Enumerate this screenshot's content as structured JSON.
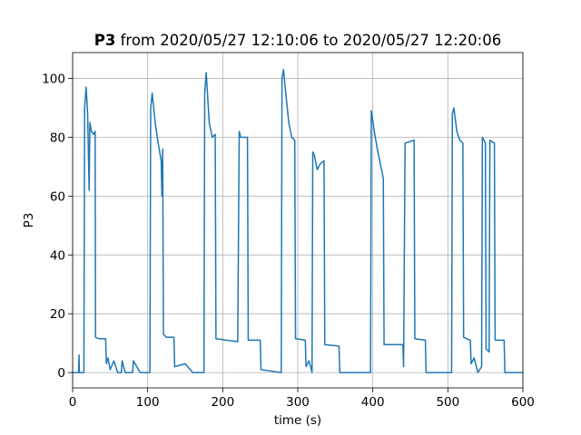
{
  "chart_data": {
    "type": "line",
    "title": {
      "bold": "P3",
      "text": "from 2020/05/27 12:10:06 to 2020/05/27 12:20:06"
    },
    "x_label": "time (s)",
    "y_label": "P3",
    "xlim": [
      0,
      600
    ],
    "xticks": [
      0,
      100,
      200,
      300,
      400,
      500,
      600
    ],
    "ylim": [
      -5.2,
      108.8
    ],
    "yticks": [
      0,
      20,
      40,
      60,
      80,
      100
    ],
    "grid": true,
    "series": [
      {
        "color": "#1f77b4",
        "x": [
          0,
          8,
          8.5,
          9,
          15,
          16,
          18,
          20,
          22,
          23,
          25,
          28,
          30,
          30.5,
          35,
          44,
          45,
          47,
          50,
          55,
          60,
          65,
          66,
          70,
          80,
          81,
          90,
          103,
          104,
          106,
          110,
          114,
          118,
          119,
          120,
          121,
          125,
          135,
          136,
          150,
          160,
          175,
          176,
          178,
          182,
          186,
          190,
          191,
          205,
          220,
          222,
          224,
          233,
          234,
          250,
          251,
          278,
          279,
          281,
          284,
          288,
          292,
          296,
          297,
          310,
          311,
          315,
          319,
          320,
          322,
          326,
          330,
          335,
          336,
          355,
          356,
          397,
          398,
          402,
          406,
          410,
          414,
          415,
          440,
          441,
          443,
          455,
          456,
          470,
          471,
          505,
          506,
          508,
          512,
          516,
          520,
          521,
          530,
          531,
          535,
          540,
          545,
          546,
          550,
          551,
          555,
          556,
          562,
          563,
          575,
          576,
          600
        ],
        "values": [
          0,
          0,
          6,
          0,
          0,
          90,
          97,
          88,
          62,
          85,
          82,
          81,
          82,
          12,
          11.5,
          11.5,
          3,
          5,
          1,
          4,
          0,
          0,
          4,
          0,
          0,
          4,
          0,
          0,
          90,
          95,
          85,
          78,
          72,
          60,
          76,
          13,
          12,
          12,
          2,
          3,
          0,
          0,
          95,
          102,
          85,
          80,
          81,
          11.5,
          11,
          10.5,
          82,
          80,
          80,
          11,
          11,
          1,
          0,
          100,
          103,
          95,
          85,
          80,
          79,
          11.5,
          11,
          2,
          4,
          0,
          75,
          74,
          69,
          71,
          72,
          9.5,
          9,
          0,
          0,
          89,
          82,
          76,
          71,
          66,
          9.5,
          9.5,
          2,
          78,
          79,
          11.5,
          11,
          0,
          0,
          88,
          90,
          82,
          79,
          78,
          12,
          11,
          3,
          5,
          0,
          2,
          80,
          78,
          8,
          7,
          79,
          78,
          11,
          11,
          0,
          0
        ]
      }
    ]
  }
}
